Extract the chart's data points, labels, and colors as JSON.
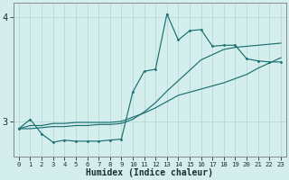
{
  "xlabel": "Humidex (Indice chaleur)",
  "bg_color": "#d4eeed",
  "grid_color": "#b8d8d8",
  "line_color": "#1a7070",
  "spine_color": "#888888",
  "x_data": [
    0,
    1,
    2,
    3,
    4,
    5,
    6,
    7,
    8,
    9,
    10,
    11,
    12,
    13,
    14,
    15,
    16,
    17,
    18,
    19,
    20,
    21,
    22,
    23
  ],
  "line1_y": [
    2.93,
    3.02,
    2.88,
    2.8,
    2.82,
    2.81,
    2.81,
    2.81,
    2.82,
    2.83,
    3.28,
    3.48,
    3.5,
    4.03,
    3.78,
    3.87,
    3.88,
    3.72,
    3.73,
    3.73,
    3.6,
    3.58,
    3.57,
    3.57
  ],
  "line2_y": [
    2.93,
    2.96,
    2.96,
    2.98,
    2.98,
    2.99,
    2.99,
    2.99,
    2.99,
    3.0,
    3.04,
    3.08,
    3.13,
    3.19,
    3.25,
    3.28,
    3.31,
    3.34,
    3.37,
    3.41,
    3.45,
    3.51,
    3.56,
    3.61
  ],
  "line3_y": [
    2.93,
    2.93,
    2.94,
    2.95,
    2.95,
    2.96,
    2.96,
    2.97,
    2.97,
    2.98,
    3.02,
    3.09,
    3.18,
    3.29,
    3.39,
    3.49,
    3.59,
    3.64,
    3.69,
    3.71,
    3.72,
    3.73,
    3.74,
    3.75
  ],
  "ylim": [
    2.66,
    4.14
  ],
  "yticks": [
    3,
    4
  ],
  "ytick_labels": [
    "3",
    "4"
  ],
  "xlim": [
    -0.5,
    23.5
  ],
  "xticks": [
    0,
    1,
    2,
    3,
    4,
    5,
    6,
    7,
    8,
    9,
    10,
    11,
    12,
    13,
    14,
    15,
    16,
    17,
    18,
    19,
    20,
    21,
    22,
    23
  ]
}
